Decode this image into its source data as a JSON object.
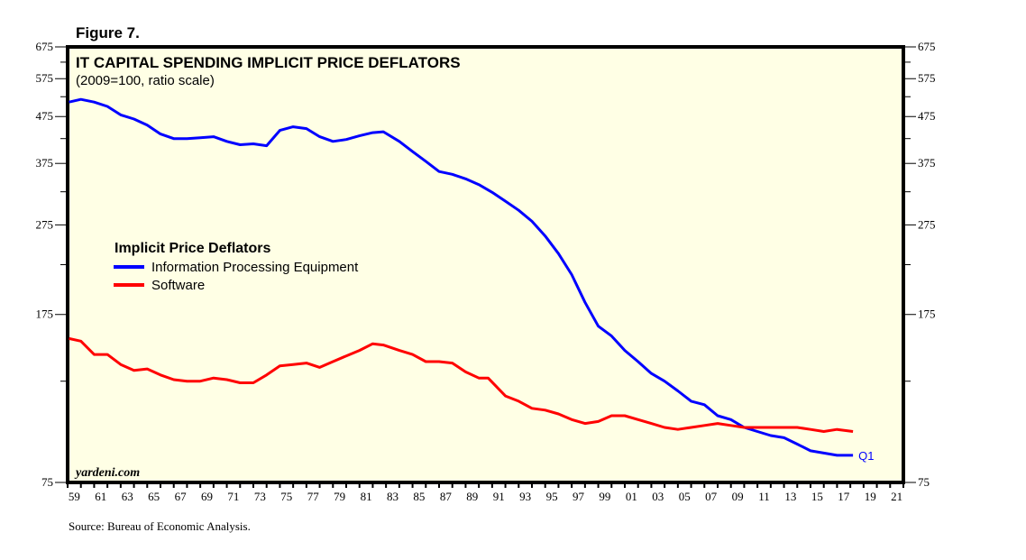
{
  "figure_label": "Figure 7.",
  "source": "Source: Bureau of Economic Analysis.",
  "watermark": "yardeni.com",
  "chart_data": {
    "type": "line",
    "title": "IT CAPITAL SPENDING IMPLICIT PRICE DEFLATORS",
    "subtitle": "(2009=100, ratio scale)",
    "xlabel": "",
    "ylabel": "",
    "yscale": "log",
    "ylim": [
      75,
      675
    ],
    "xlim": [
      1959,
      2022
    ],
    "y_ticks": [
      75,
      175,
      275,
      375,
      475,
      575,
      675
    ],
    "y_tick_labels": [
      "75",
      "175",
      "275",
      "375",
      "475",
      "575",
      "675"
    ],
    "y_minor_ticks": [
      125,
      225,
      325,
      425,
      525,
      625
    ],
    "x_ticks": [
      1959,
      1961,
      1963,
      1965,
      1967,
      1969,
      1971,
      1973,
      1975,
      1977,
      1979,
      1981,
      1983,
      1985,
      1987,
      1989,
      1991,
      1993,
      1995,
      1997,
      1999,
      2001,
      2003,
      2005,
      2007,
      2009,
      2011,
      2013,
      2015,
      2017,
      2019,
      2021
    ],
    "x_tick_labels": [
      "59",
      "61",
      "63",
      "65",
      "67",
      "69",
      "71",
      "73",
      "75",
      "77",
      "79",
      "81",
      "83",
      "85",
      "87",
      "89",
      "91",
      "93",
      "95",
      "97",
      "99",
      "01",
      "03",
      "05",
      "07",
      "09",
      "11",
      "13",
      "15",
      "17",
      "19",
      "21"
    ],
    "grid": false,
    "legend": {
      "title": "Implicit Price Deflators",
      "placement": "middle-left"
    },
    "series": [
      {
        "name": "Information Processing Equipment",
        "color": "#0000ff",
        "end_label": "Q1",
        "x": [
          1959.1,
          1960,
          1961,
          1962,
          1963,
          1964,
          1965,
          1966,
          1967,
          1968,
          1969,
          1970,
          1971,
          1972,
          1973,
          1974,
          1975,
          1976,
          1977,
          1978,
          1979,
          1980,
          1981,
          1982,
          1982.8,
          1984,
          1985,
          1986,
          1987,
          1988,
          1989,
          1990,
          1991,
          1992,
          1993,
          1994,
          1995,
          1996,
          1997,
          1998,
          1999,
          2000,
          2001,
          2002,
          2003,
          2004,
          2005,
          2006,
          2007,
          2008,
          2009,
          2010,
          2011,
          2012,
          2013,
          2014,
          2015,
          2016,
          2017,
          2018.2
        ],
        "values": [
          511,
          518,
          511,
          500,
          479,
          469,
          455,
          435,
          425,
          425,
          427,
          429,
          419,
          412,
          414,
          410,
          443,
          451,
          447,
          429,
          419,
          423,
          431,
          438,
          440,
          419,
          398,
          379,
          360,
          355,
          347,
          337,
          324,
          310,
          296,
          280,
          260,
          238,
          214,
          186,
          165,
          157,
          146,
          138,
          130,
          125,
          119,
          113,
          111,
          105,
          103,
          99,
          97,
          95,
          94,
          91,
          88,
          87,
          86,
          86
        ]
      },
      {
        "name": "Software",
        "color": "#ff0000",
        "x": [
          1959.1,
          1960,
          1961,
          1962,
          1963,
          1964,
          1965,
          1966,
          1967,
          1968,
          1969,
          1970,
          1971,
          1972,
          1973,
          1974,
          1975,
          1976,
          1977,
          1978,
          1979,
          1980,
          1981,
          1982,
          1982.8,
          1984,
          1985,
          1986,
          1987,
          1988,
          1989,
          1990,
          1990.7,
          1992,
          1993,
          1994,
          1995,
          1996,
          1997,
          1998,
          1999,
          2000,
          2001,
          2002,
          2003,
          2004,
          2005,
          2006,
          2007,
          2008,
          2009,
          2010,
          2011,
          2012,
          2013,
          2014,
          2015,
          2016,
          2017,
          2018.2
        ],
        "values": [
          155,
          153,
          143,
          143,
          136,
          132,
          133,
          129,
          126,
          125,
          125,
          127,
          126,
          124,
          124,
          129,
          135,
          136,
          137,
          134,
          138,
          142,
          146,
          151,
          150,
          146,
          143,
          138,
          138,
          137,
          131,
          127,
          127,
          116,
          113,
          109,
          108,
          106,
          103,
          101,
          102,
          105,
          105,
          103,
          101,
          99,
          98,
          99,
          100,
          101,
          100,
          99,
          99,
          99,
          99,
          99,
          98,
          97,
          98,
          97
        ]
      }
    ]
  }
}
